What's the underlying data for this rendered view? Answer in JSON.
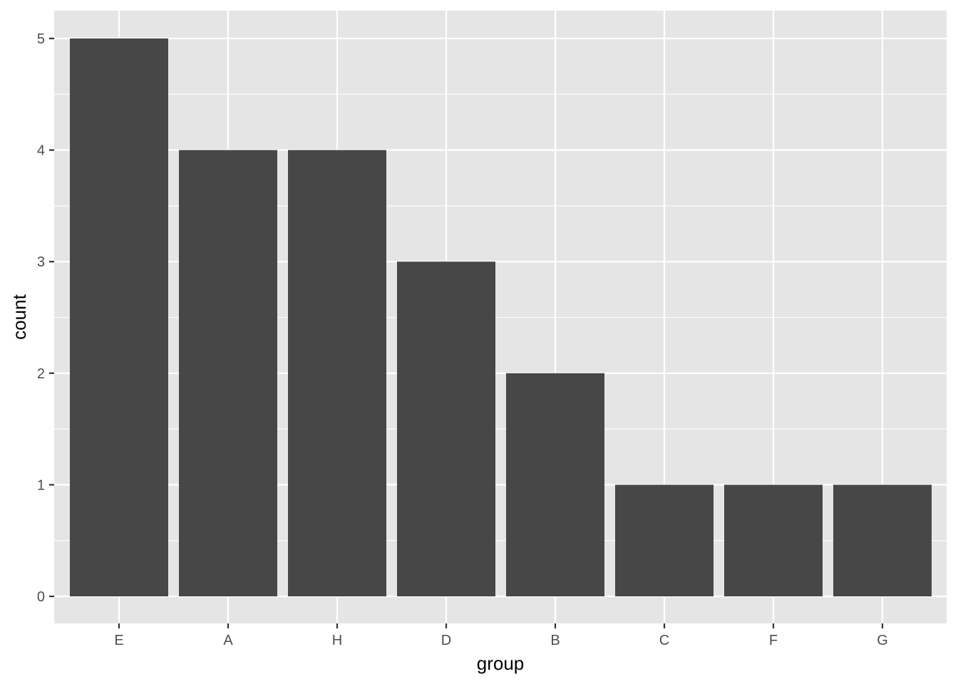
{
  "chart_data": {
    "type": "bar",
    "categories": [
      "E",
      "A",
      "H",
      "D",
      "B",
      "C",
      "F",
      "G"
    ],
    "values": [
      5,
      4,
      4,
      3,
      2,
      1,
      1,
      1
    ],
    "title": "",
    "xlabel": "group",
    "ylabel": "count",
    "ylim": [
      0,
      5
    ],
    "yticks": [
      0,
      1,
      2,
      3,
      4,
      5
    ],
    "grid": true,
    "colors": {
      "panel_background": "#e5e5e5",
      "grid_line": "#ffffff",
      "bar_fill": "#474747",
      "tick_text": "#4d4d4d",
      "axis_title": "#000000"
    }
  }
}
